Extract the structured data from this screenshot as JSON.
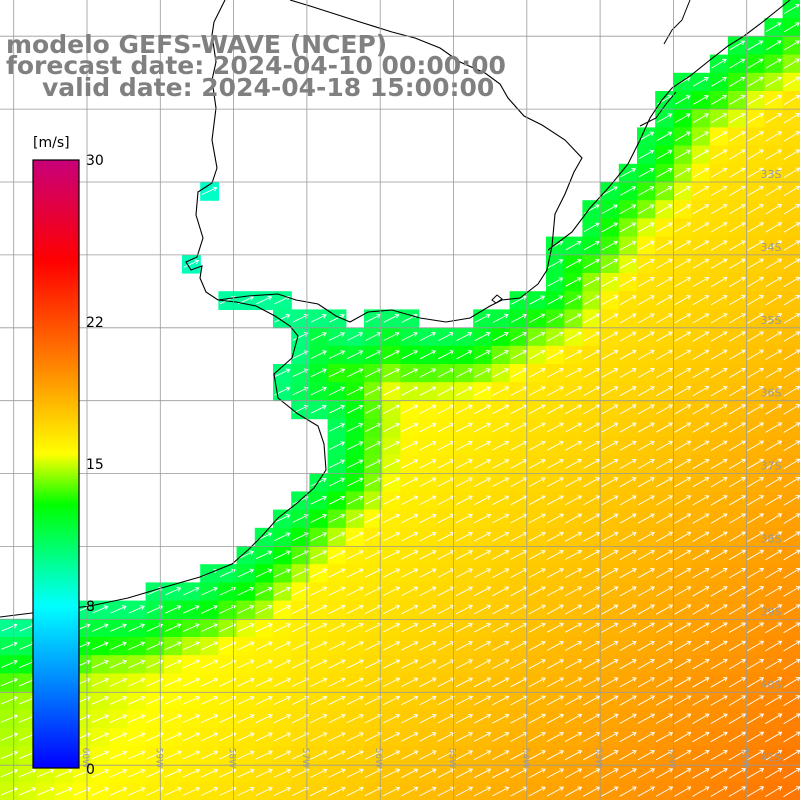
{
  "titles": {
    "model": "modelo GEFS-WAVE (NCEP)",
    "forecast": "forecast date: 2024-04-10 00:00:00",
    "valid": "valid date: 2024-04-18 15:00:00"
  },
  "colorbar": {
    "unit": "[m/s]",
    "min": 0,
    "max": 30,
    "ticks": [
      "30",
      "22",
      "15",
      "8",
      "0"
    ],
    "tick_values": [
      30,
      22,
      15,
      8,
      0
    ],
    "colors": [
      "#0000ff",
      "#00ffff",
      "#00ff00",
      "#ffff00",
      "#ff8000",
      "#ff0000",
      "#c8007a"
    ],
    "color_stops": [
      0,
      8,
      13,
      15.5,
      20,
      25,
      30
    ]
  },
  "map": {
    "lon_range": [
      -61,
      -50
    ],
    "lat_range": [
      -41.4,
      -30.5
    ],
    "lat_labels": [
      "33S",
      "34S",
      "35S",
      "36S",
      "37S",
      "38S",
      "39S",
      "40S",
      "41S"
    ],
    "lat_label_values": [
      -33,
      -34,
      -35,
      -36,
      -37,
      -38,
      -39,
      -40,
      -41
    ],
    "lon_labels": [
      "60W",
      "59W",
      "58W",
      "57W",
      "56W",
      "55W",
      "54W",
      "53W",
      "52W",
      "51W"
    ],
    "lon_label_values": [
      -60,
      -59,
      -58,
      -57,
      -56,
      -55,
      -54,
      -53,
      -52,
      -51
    ],
    "grid": true,
    "wind_direction": "northeast"
  }
}
